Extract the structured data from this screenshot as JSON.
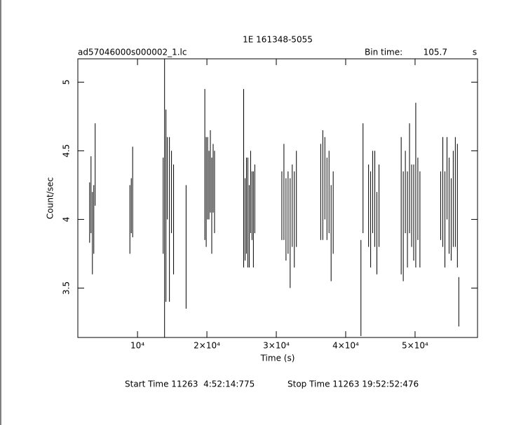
{
  "chart_data": {
    "type": "errorbar",
    "title": "1E 161348-5055",
    "file_label": "ad57046000s000002_1.lc",
    "bin_time_label": "Bin time:",
    "bin_time": 105.7,
    "bin_time_unit": "s",
    "x_label": "Time (s)",
    "y_label": "Count/sec",
    "start_time": "Start Time 11263  4:52:14:775",
    "stop_time": "Stop Time 11263 19:52:52:476",
    "color": "#000000",
    "xlim": [
      1400,
      59000
    ],
    "ylim": [
      3.14,
      5.17
    ],
    "xticks": [
      {
        "value": 10000,
        "label": "10⁴"
      },
      {
        "value": 20000,
        "label": "2×10⁴"
      },
      {
        "value": 30000,
        "label": "3×10⁴"
      },
      {
        "value": 40000,
        "label": "4×10⁴"
      },
      {
        "value": 50000,
        "label": "5×10⁴"
      }
    ],
    "yticks": [
      3.5,
      4,
      4.5,
      5
    ],
    "x": [
      3100,
      3300,
      3500,
      3700,
      3900,
      8900,
      9100,
      9300,
      13700,
      13900,
      14100,
      14300,
      14600,
      14900,
      15200,
      17000,
      19700,
      19900,
      20100,
      20300,
      20500,
      20700,
      20900,
      21100,
      25300,
      25500,
      25700,
      25900,
      26100,
      26300,
      26500,
      26700,
      26900,
      30800,
      31100,
      31400,
      31700,
      32000,
      32300,
      32600,
      32900,
      36400,
      36700,
      37000,
      37300,
      37600,
      37900,
      38200,
      42200,
      42500,
      43300,
      43600,
      43900,
      44200,
      44500,
      44800,
      48000,
      48300,
      48600,
      48900,
      49200,
      49500,
      49800,
      50100,
      50400,
      50700,
      53700,
      54000,
      54300,
      54600,
      54900,
      55200,
      55500,
      55800,
      56100,
      56300
    ],
    "values": [
      4.05,
      4.18,
      3.9,
      4.0,
      4.4,
      4.0,
      4.1,
      4.2,
      4.1,
      4.15,
      4.1,
      4.3,
      4.0,
      4.2,
      4.0,
      3.8,
      4.4,
      4.2,
      4.3,
      4.25,
      4.35,
      4.1,
      4.3,
      4.2,
      4.3,
      4.0,
      4.1,
      4.05,
      3.95,
      4.2,
      4.1,
      4.0,
      4.15,
      4.1,
      4.2,
      4.0,
      4.05,
      3.9,
      4.1,
      4.0,
      4.15,
      4.2,
      4.25,
      4.3,
      4.15,
      4.2,
      3.9,
      4.05,
      3.5,
      4.3,
      4.1,
      4.0,
      4.2,
      4.15,
      3.9,
      4.1,
      4.1,
      3.95,
      4.2,
      4.0,
      4.3,
      4.1,
      4.05,
      4.25,
      4.15,
      4.0,
      4.1,
      4.2,
      4.0,
      4.3,
      4.1,
      4.0,
      4.15,
      4.2,
      4.1,
      3.4
    ],
    "errors": [
      0.22,
      0.28,
      0.3,
      0.25,
      0.3,
      0.25,
      0.2,
      0.33,
      0.35,
      1.02,
      0.7,
      0.3,
      0.6,
      0.3,
      0.4,
      0.45,
      0.55,
      0.4,
      0.3,
      0.25,
      0.3,
      0.35,
      0.25,
      0.3,
      0.65,
      0.3,
      0.35,
      0.4,
      0.3,
      0.3,
      0.25,
      0.35,
      0.25,
      0.25,
      0.35,
      0.3,
      0.3,
      0.4,
      0.3,
      0.35,
      0.35,
      0.35,
      0.4,
      0.3,
      0.3,
      0.3,
      0.35,
      0.3,
      0.35,
      0.4,
      0.3,
      0.35,
      0.3,
      0.35,
      0.3,
      0.3,
      0.5,
      0.4,
      0.3,
      0.35,
      0.4,
      0.3,
      0.35,
      0.6,
      0.3,
      0.35,
      0.25,
      0.4,
      0.35,
      0.3,
      0.35,
      0.3,
      0.35,
      0.4,
      0.45,
      0.18
    ]
  }
}
